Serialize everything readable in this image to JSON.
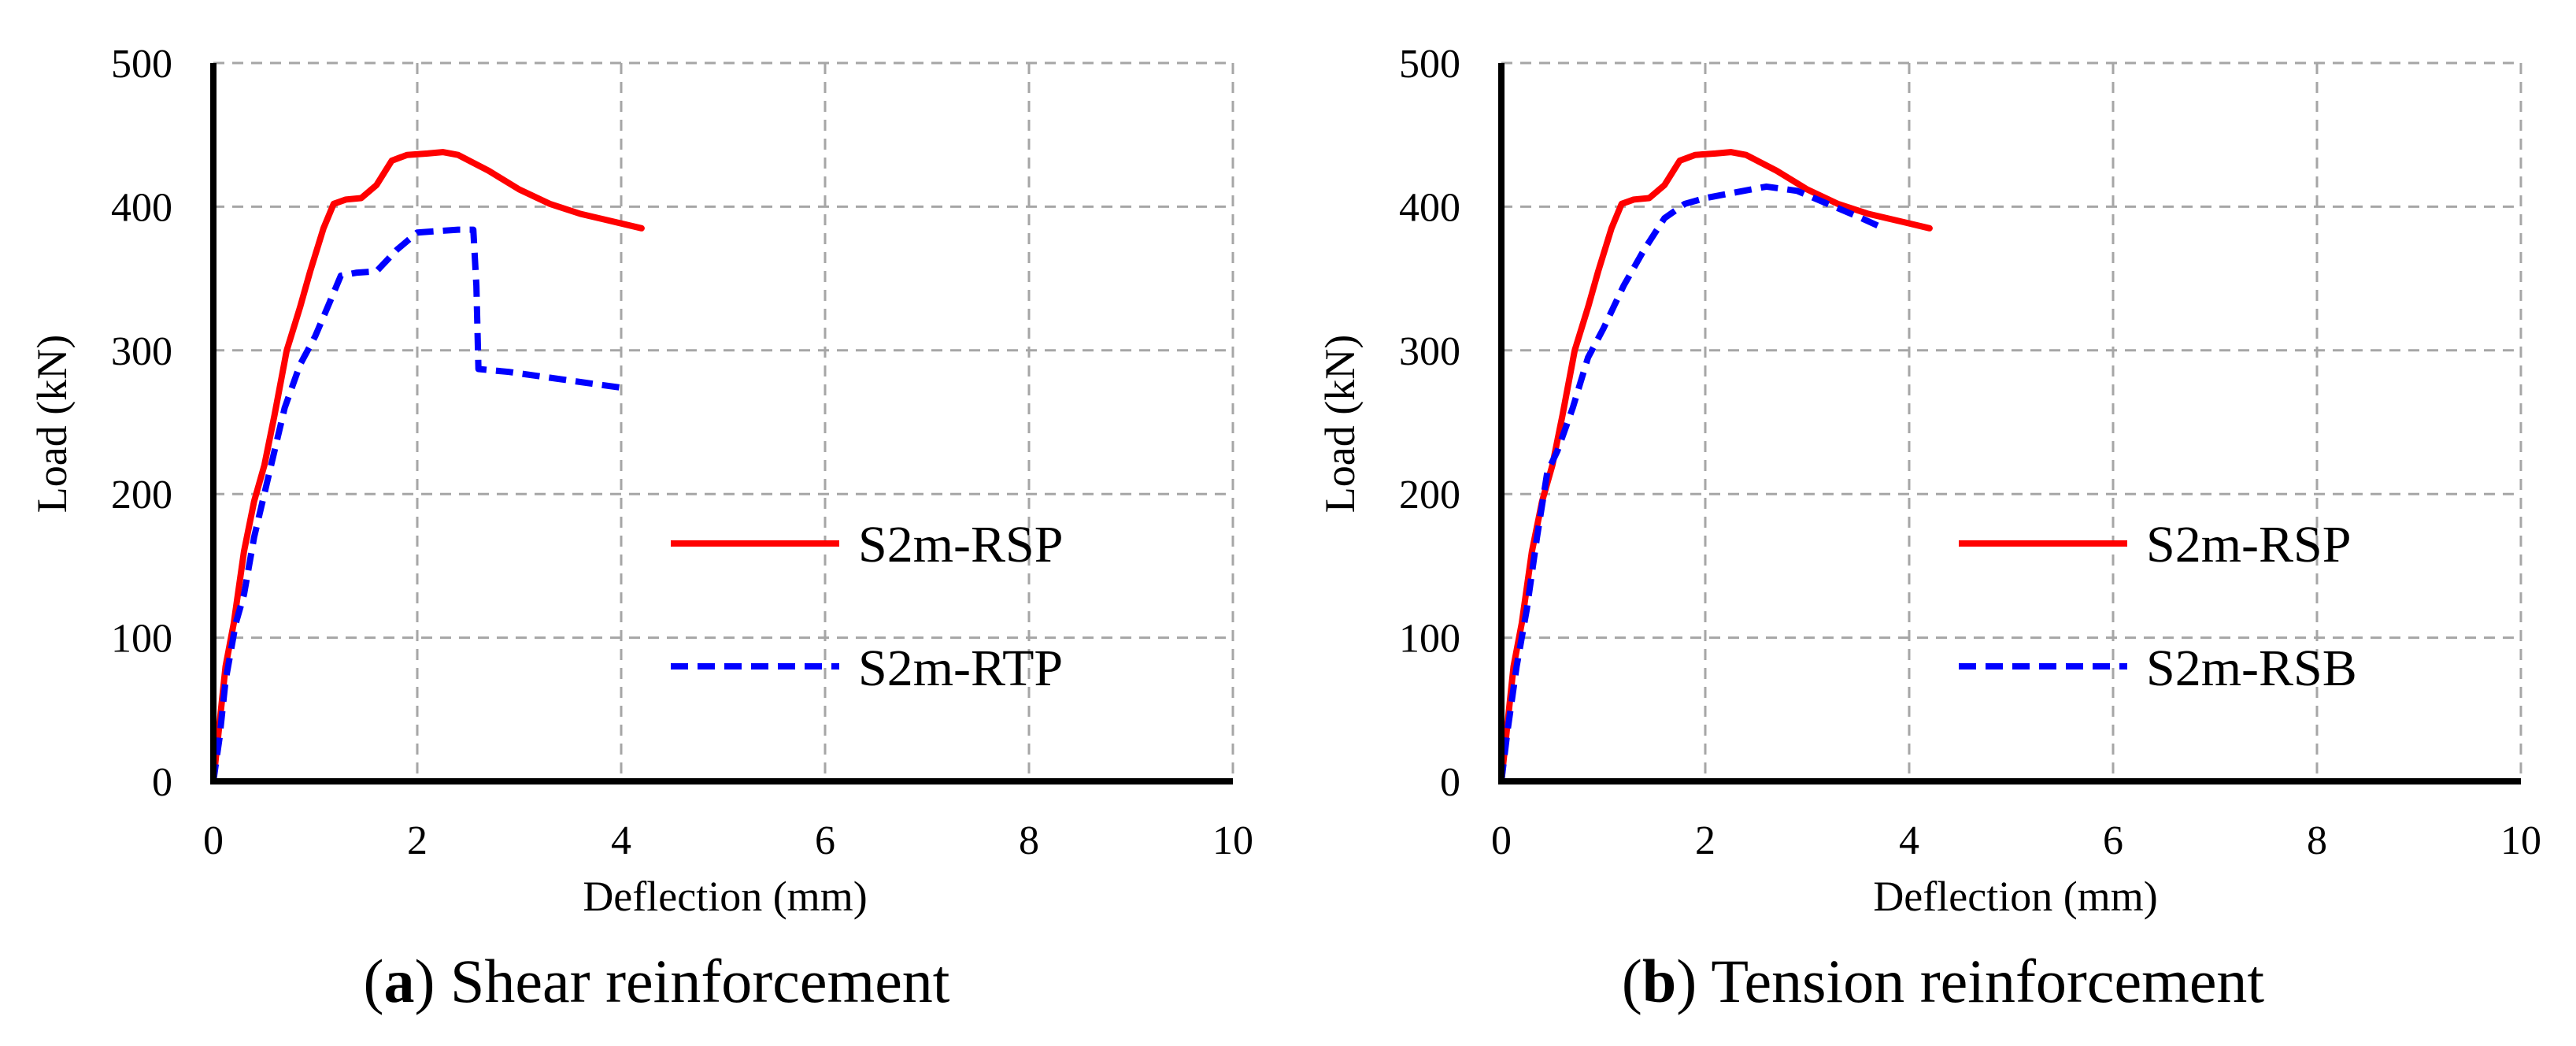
{
  "chart_data": [
    {
      "type": "line",
      "panel_letter": "a",
      "caption": "Shear reinforcement",
      "xlabel": "Deflection (mm)",
      "ylabel": "Load (kN)",
      "xlim": [
        0,
        10
      ],
      "ylim": [
        0,
        500
      ],
      "xticks": [
        0,
        2,
        4,
        6,
        8,
        10
      ],
      "yticks": [
        0,
        100,
        200,
        300,
        400,
        500
      ],
      "grid": true,
      "legend_position": "center-right",
      "series": [
        {
          "name": "S2m-RSP",
          "color": "#ff0000",
          "style": "solid",
          "points": [
            [
              0,
              0
            ],
            [
              0.06,
              40
            ],
            [
              0.12,
              80
            ],
            [
              0.2,
              110
            ],
            [
              0.3,
              160
            ],
            [
              0.4,
              195
            ],
            [
              0.5,
              220
            ],
            [
              0.6,
              255
            ],
            [
              0.72,
              300
            ],
            [
              0.85,
              330
            ],
            [
              0.95,
              355
            ],
            [
              1.08,
              385
            ],
            [
              1.18,
              402
            ],
            [
              1.3,
              405
            ],
            [
              1.45,
              406
            ],
            [
              1.6,
              415
            ],
            [
              1.75,
              432
            ],
            [
              1.9,
              436
            ],
            [
              2.1,
              437
            ],
            [
              2.25,
              438
            ],
            [
              2.4,
              436
            ],
            [
              2.7,
              425
            ],
            [
              3.0,
              412
            ],
            [
              3.3,
              402
            ],
            [
              3.6,
              395
            ],
            [
              3.9,
              390
            ],
            [
              4.2,
              385
            ]
          ]
        },
        {
          "name": "S2m-RTP",
          "color": "#0000ff",
          "style": "dashed",
          "points": [
            [
              0,
              0
            ],
            [
              0.06,
              30
            ],
            [
              0.12,
              70
            ],
            [
              0.22,
              110
            ],
            [
              0.3,
              130
            ],
            [
              0.4,
              170
            ],
            [
              0.55,
              215
            ],
            [
              0.7,
              260
            ],
            [
              0.85,
              290
            ],
            [
              1.0,
              310
            ],
            [
              1.15,
              335
            ],
            [
              1.25,
              352
            ],
            [
              1.4,
              354
            ],
            [
              1.6,
              355
            ],
            [
              1.8,
              370
            ],
            [
              2.0,
              382
            ],
            [
              2.2,
              383
            ],
            [
              2.4,
              384
            ],
            [
              2.55,
              384
            ],
            [
              2.58,
              345
            ],
            [
              2.6,
              287
            ],
            [
              2.9,
              285
            ],
            [
              3.3,
              281
            ],
            [
              3.7,
              277
            ],
            [
              4.0,
              274
            ]
          ]
        }
      ]
    },
    {
      "type": "line",
      "panel_letter": "b",
      "caption": "Tension reinforcement",
      "xlabel": "Deflection (mm)",
      "ylabel": "Load (kN)",
      "xlim": [
        0,
        10
      ],
      "ylim": [
        0,
        500
      ],
      "xticks": [
        0,
        2,
        4,
        6,
        8,
        10
      ],
      "yticks": [
        0,
        100,
        200,
        300,
        400,
        500
      ],
      "grid": true,
      "legend_position": "center-right",
      "series": [
        {
          "name": "S2m-RSP",
          "color": "#ff0000",
          "style": "solid",
          "points": [
            [
              0,
              0
            ],
            [
              0.06,
              40
            ],
            [
              0.12,
              80
            ],
            [
              0.2,
              110
            ],
            [
              0.3,
              160
            ],
            [
              0.4,
              195
            ],
            [
              0.5,
              220
            ],
            [
              0.6,
              255
            ],
            [
              0.72,
              300
            ],
            [
              0.85,
              330
            ],
            [
              0.95,
              355
            ],
            [
              1.08,
              385
            ],
            [
              1.18,
              402
            ],
            [
              1.3,
              405
            ],
            [
              1.45,
              406
            ],
            [
              1.6,
              415
            ],
            [
              1.75,
              432
            ],
            [
              1.9,
              436
            ],
            [
              2.1,
              437
            ],
            [
              2.25,
              438
            ],
            [
              2.4,
              436
            ],
            [
              2.7,
              425
            ],
            [
              3.0,
              412
            ],
            [
              3.3,
              402
            ],
            [
              3.6,
              395
            ],
            [
              3.9,
              390
            ],
            [
              4.2,
              385
            ]
          ]
        },
        {
          "name": "S2m-RSB",
          "color": "#0000ff",
          "style": "dashed",
          "points": [
            [
              0,
              0
            ],
            [
              0.06,
              35
            ],
            [
              0.15,
              80
            ],
            [
              0.25,
              120
            ],
            [
              0.35,
              170
            ],
            [
              0.45,
              215
            ],
            [
              0.55,
              230
            ],
            [
              0.7,
              260
            ],
            [
              0.85,
              295
            ],
            [
              1.0,
              315
            ],
            [
              1.2,
              345
            ],
            [
              1.4,
              370
            ],
            [
              1.6,
              392
            ],
            [
              1.8,
              402
            ],
            [
              2.0,
              406
            ],
            [
              2.3,
              410
            ],
            [
              2.6,
              414
            ],
            [
              2.9,
              411
            ],
            [
              3.2,
              402
            ],
            [
              3.5,
              393
            ],
            [
              3.75,
              385
            ]
          ]
        }
      ]
    }
  ]
}
